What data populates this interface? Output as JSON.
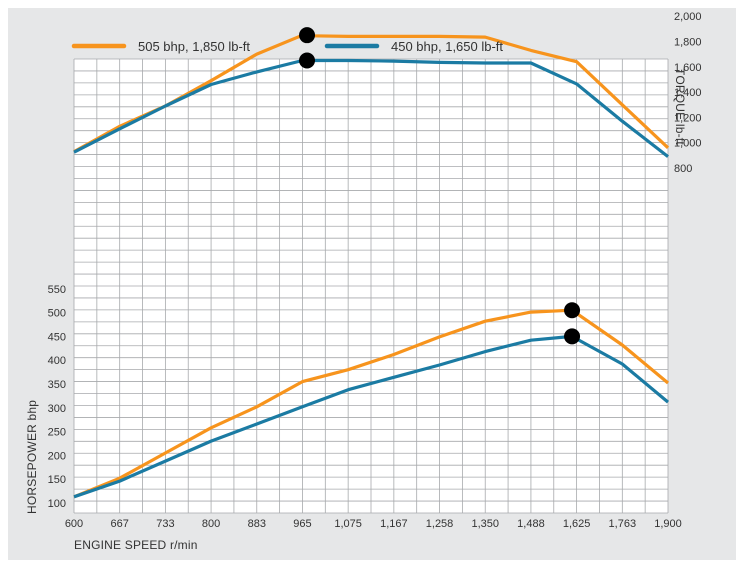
{
  "chart_data": {
    "type": "line",
    "x_tick_labels": [
      "600",
      "667",
      "733",
      "800",
      "883",
      "965",
      "1,075",
      "1,167",
      "1,258",
      "1,350",
      "1,488",
      "1,625",
      "1,763",
      "1,900"
    ],
    "xlabel": "ENGINE SPEED r/min",
    "torque_axis": {
      "label": "TORQUE lb-ft",
      "ticks": [
        "2,000",
        "1,800",
        "1,600",
        "1,400",
        "1,200",
        "1,000",
        "800"
      ],
      "ylim": [
        800,
        2000
      ],
      "position": "right"
    },
    "power_axis": {
      "label": "HORSEPOWER bhp",
      "ticks": [
        "550",
        "500",
        "450",
        "400",
        "350",
        "300",
        "250",
        "200",
        "150",
        "100"
      ],
      "ylim": [
        100,
        550
      ],
      "position": "left"
    },
    "legend": {
      "placement": "top-left"
    },
    "grid": true,
    "series": [
      {
        "name": "505 bhp, 1,850 lb-ft",
        "color": "#f7941d",
        "torque": [
          [
            0,
            930
          ],
          [
            1,
            1130
          ],
          [
            2,
            1290
          ],
          [
            3,
            1490
          ],
          [
            4,
            1700
          ],
          [
            5,
            1850
          ],
          [
            5.2,
            1845
          ],
          [
            6,
            1840
          ],
          [
            8,
            1840
          ],
          [
            9,
            1835
          ],
          [
            10,
            1730
          ],
          [
            11,
            1640
          ],
          [
            12,
            1300
          ],
          [
            13,
            960
          ]
        ],
        "power": [
          [
            0,
            113
          ],
          [
            1,
            152
          ],
          [
            2,
            205
          ],
          [
            3,
            258
          ],
          [
            4,
            302
          ],
          [
            5,
            355
          ],
          [
            6,
            380
          ],
          [
            7,
            412
          ],
          [
            8,
            449
          ],
          [
            9,
            482
          ],
          [
            10,
            501
          ],
          [
            10.9,
            505
          ],
          [
            12,
            432
          ],
          [
            13,
            352
          ]
        ],
        "peak_torque": [
          5.1,
          1850
        ],
        "peak_power": [
          10.9,
          505
        ]
      },
      {
        "name": "450 bhp, 1,650 lb-ft",
        "color": "#1b7ba3",
        "torque": [
          [
            0,
            925
          ],
          [
            1,
            1110
          ],
          [
            2,
            1290
          ],
          [
            3,
            1460
          ],
          [
            4,
            1560
          ],
          [
            5,
            1650
          ],
          [
            5.2,
            1650
          ],
          [
            6,
            1650
          ],
          [
            7,
            1645
          ],
          [
            8,
            1635
          ],
          [
            9,
            1630
          ],
          [
            10,
            1630
          ],
          [
            11,
            1465
          ],
          [
            12,
            1170
          ],
          [
            13,
            890
          ]
        ],
        "power": [
          [
            0,
            113
          ],
          [
            1,
            146
          ],
          [
            2,
            188
          ],
          [
            3,
            230
          ],
          [
            4,
            266
          ],
          [
            5,
            302
          ],
          [
            6,
            338
          ],
          [
            7,
            364
          ],
          [
            8,
            390
          ],
          [
            9,
            418
          ],
          [
            10,
            442
          ],
          [
            10.9,
            450
          ],
          [
            12,
            392
          ],
          [
            13,
            312
          ]
        ],
        "peak_torque": [
          5.1,
          1650
        ],
        "peak_power": [
          10.9,
          450
        ]
      }
    ]
  }
}
